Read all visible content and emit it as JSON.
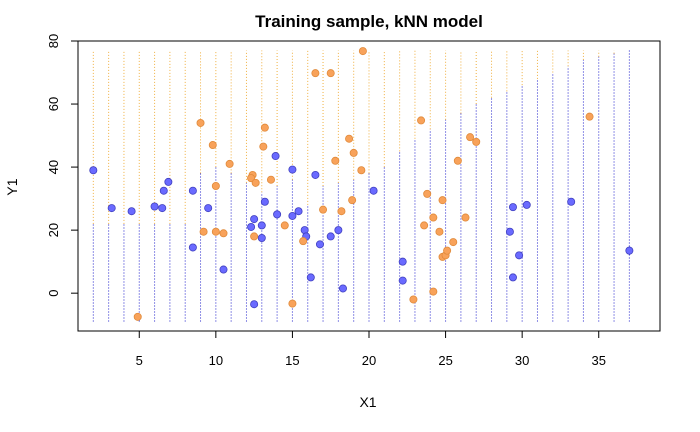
{
  "chart_data": {
    "type": "scatter",
    "title": "Training sample, kNN model",
    "xlabel": "X1",
    "ylabel": "Y1",
    "xlim": [
      1,
      39
    ],
    "ylim": [
      -12,
      80
    ],
    "x_ticks": [
      5,
      10,
      15,
      20,
      25,
      30,
      35
    ],
    "y_ticks": [
      0,
      20,
      40,
      60,
      80
    ],
    "grid": false,
    "legend": "none",
    "colors": {
      "blue_points": "#6A6AFF",
      "blue_points_edge": "#4040C0",
      "orange_points": "#F8A25A",
      "orange_points_edge": "#E08A3A",
      "blue_region": "#2222CC",
      "orange_region": "#F0B040",
      "axes": "#000000"
    },
    "decision_region": {
      "x_start": 2,
      "x_step": 1,
      "x_count": 36,
      "y_min": -9,
      "y_max": 77,
      "boundary_y": [
        22,
        22,
        22,
        22,
        22,
        22,
        22,
        38,
        40,
        38,
        35,
        32,
        34,
        36,
        28,
        34,
        35,
        36,
        38,
        40,
        45,
        49,
        52,
        55,
        57,
        60,
        62,
        64,
        66,
        68,
        70,
        72,
        74,
        75,
        76,
        77
      ]
    },
    "series": [
      {
        "class": "blue",
        "points": [
          [
            2.0,
            39
          ],
          [
            3.2,
            27
          ],
          [
            4.5,
            26
          ],
          [
            6.0,
            27.5
          ],
          [
            6.5,
            27
          ],
          [
            6.6,
            32.5
          ],
          [
            6.9,
            35.3
          ],
          [
            8.5,
            32.5
          ],
          [
            8.5,
            14.5
          ],
          [
            9.5,
            27
          ],
          [
            10.5,
            7.5
          ],
          [
            12.3,
            21
          ],
          [
            12.5,
            23.5
          ],
          [
            12.5,
            -3.5
          ],
          [
            13.0,
            21.5
          ],
          [
            13.0,
            17.5
          ],
          [
            13.2,
            29
          ],
          [
            13.9,
            43.5
          ],
          [
            14.0,
            25
          ],
          [
            15.0,
            24.5
          ],
          [
            15.0,
            39.2
          ],
          [
            15.4,
            26
          ],
          [
            15.8,
            20
          ],
          [
            15.9,
            18
          ],
          [
            16.2,
            5
          ],
          [
            16.5,
            37.5
          ],
          [
            16.8,
            15.5
          ],
          [
            17.5,
            18
          ],
          [
            18.0,
            20
          ],
          [
            18.3,
            1.5
          ],
          [
            20.3,
            32.5
          ],
          [
            22.2,
            10
          ],
          [
            22.2,
            4
          ],
          [
            29.2,
            19.5
          ],
          [
            29.4,
            5
          ],
          [
            29.4,
            27.3
          ],
          [
            29.8,
            12
          ],
          [
            30.3,
            28
          ],
          [
            33.2,
            29
          ],
          [
            37.0,
            13.5
          ]
        ]
      },
      {
        "class": "orange",
        "points": [
          [
            4.9,
            -7.5
          ],
          [
            9.0,
            54
          ],
          [
            9.2,
            19.5
          ],
          [
            9.8,
            47
          ],
          [
            10.0,
            34
          ],
          [
            10.0,
            19.5
          ],
          [
            10.5,
            19
          ],
          [
            10.9,
            41
          ],
          [
            12.4,
            37.5
          ],
          [
            12.3,
            36.5
          ],
          [
            12.5,
            18
          ],
          [
            12.6,
            35
          ],
          [
            13.1,
            46.5
          ],
          [
            13.2,
            52.5
          ],
          [
            13.6,
            36
          ],
          [
            14.5,
            21.5
          ],
          [
            15.0,
            -3.3
          ],
          [
            15.7,
            16.5
          ],
          [
            16.5,
            69.8
          ],
          [
            17.0,
            26.5
          ],
          [
            17.5,
            69.8
          ],
          [
            17.8,
            42
          ],
          [
            18.2,
            26
          ],
          [
            18.7,
            49
          ],
          [
            18.9,
            29.5
          ],
          [
            19.0,
            44.5
          ],
          [
            19.5,
            39
          ],
          [
            19.6,
            76.8
          ],
          [
            22.9,
            -2
          ],
          [
            23.4,
            54.8
          ],
          [
            23.6,
            21.5
          ],
          [
            23.8,
            31.5
          ],
          [
            24.2,
            24
          ],
          [
            24.2,
            0.5
          ],
          [
            24.6,
            19.5
          ],
          [
            24.8,
            29.5
          ],
          [
            24.8,
            11.5
          ],
          [
            25.0,
            12
          ],
          [
            25.1,
            13.5
          ],
          [
            25.5,
            16.2
          ],
          [
            25.8,
            42
          ],
          [
            26.3,
            24
          ],
          [
            26.6,
            49.5
          ],
          [
            27.0,
            48
          ],
          [
            34.4,
            56
          ]
        ]
      }
    ]
  }
}
